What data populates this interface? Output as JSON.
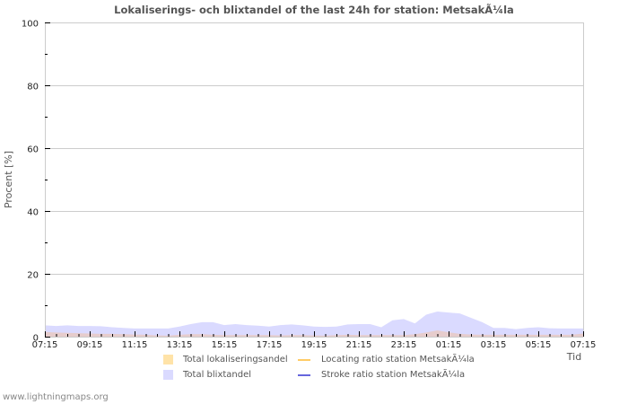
{
  "header": {
    "title": "Lokaliserings- och blixtandel of the last 24h for station: MetsakÃ¼la"
  },
  "footer": {
    "source": "www.lightningmaps.org"
  },
  "legend": {
    "items": [
      {
        "label": "Total lokaliseringsandel",
        "type": "area",
        "color": "#ffe3a8"
      },
      {
        "label": "Total blixtandel",
        "type": "area",
        "color": "#dadaff"
      },
      {
        "label": "Locating ratio station MetsakÃ¼la",
        "type": "line",
        "color": "#ffcc66"
      },
      {
        "label": "Stroke ratio station MetsakÃ¼la",
        "type": "line",
        "color": "#6666dd"
      }
    ]
  },
  "colors": {
    "blixtandel_fill": "#dadaff",
    "lokaliseringsandel_fill": "#e6cccc",
    "grid": "#cccccc",
    "text": "#222222"
  },
  "chart_data": {
    "type": "area",
    "title": "Lokaliserings- och blixtandel of the last 24h for station: MetsakÃ¼la",
    "xlabel": "Tid",
    "ylabel": "Procent   [%]",
    "ylim": [
      0,
      100
    ],
    "yticks": [
      0,
      20,
      40,
      60,
      80,
      100
    ],
    "grid": true,
    "legend_position": "bottom",
    "x_tick_labels": [
      "07:15",
      "09:15",
      "11:15",
      "13:15",
      "15:15",
      "17:15",
      "19:15",
      "21:15",
      "23:15",
      "01:15",
      "03:15",
      "05:15",
      "07:15"
    ],
    "x": [
      "07:15",
      "07:45",
      "08:15",
      "08:45",
      "09:15",
      "09:45",
      "10:15",
      "10:45",
      "11:15",
      "11:45",
      "12:15",
      "12:45",
      "13:15",
      "13:45",
      "14:15",
      "14:45",
      "15:15",
      "15:45",
      "16:15",
      "16:45",
      "17:15",
      "17:45",
      "18:15",
      "18:45",
      "19:15",
      "19:45",
      "20:15",
      "20:45",
      "21:15",
      "21:45",
      "22:15",
      "22:45",
      "23:15",
      "23:45",
      "00:15",
      "00:45",
      "01:15",
      "01:45",
      "02:15",
      "02:45",
      "03:15",
      "03:45",
      "04:15",
      "04:45",
      "05:15",
      "05:45",
      "06:15",
      "06:45",
      "07:15"
    ],
    "series": [
      {
        "name": "Total blixtandel",
        "values": [
          3.6,
          3.4,
          3.6,
          3.4,
          3.4,
          3.3,
          3.0,
          2.8,
          2.6,
          2.6,
          2.6,
          2.6,
          3.2,
          4.0,
          4.6,
          4.6,
          3.7,
          4.0,
          3.7,
          3.5,
          3.2,
          3.7,
          3.9,
          3.6,
          3.2,
          3.1,
          3.2,
          3.9,
          4.0,
          4.0,
          3.0,
          5.2,
          5.6,
          4.2,
          7.0,
          8.0,
          7.7,
          7.4,
          6.0,
          4.6,
          2.8,
          2.8,
          2.4,
          2.8,
          3.0,
          2.7,
          2.6,
          2.6,
          2.6
        ]
      },
      {
        "name": "Total lokaliseringsandel",
        "values": [
          1.5,
          1.3,
          1.2,
          1.1,
          1.0,
          0.9,
          0.9,
          0.8,
          0.7,
          0.6,
          0.4,
          0.3,
          0.6,
          0.8,
          0.8,
          0.6,
          0.5,
          0.5,
          0.5,
          0.5,
          0.5,
          0.4,
          0.5,
          0.5,
          0.4,
          0.3,
          0.5,
          0.6,
          0.5,
          0.5,
          0.5,
          0.5,
          0.5,
          0.8,
          1.3,
          2.0,
          1.4,
          0.9,
          0.7,
          0.6,
          0.6,
          0.6,
          0.6,
          0.6,
          0.6,
          0.6,
          0.6,
          0.6,
          1.0
        ]
      },
      {
        "name": "Locating ratio station MetsakÃ¼la",
        "values": []
      },
      {
        "name": "Stroke ratio station MetsakÃ¼la",
        "values": []
      }
    ]
  }
}
